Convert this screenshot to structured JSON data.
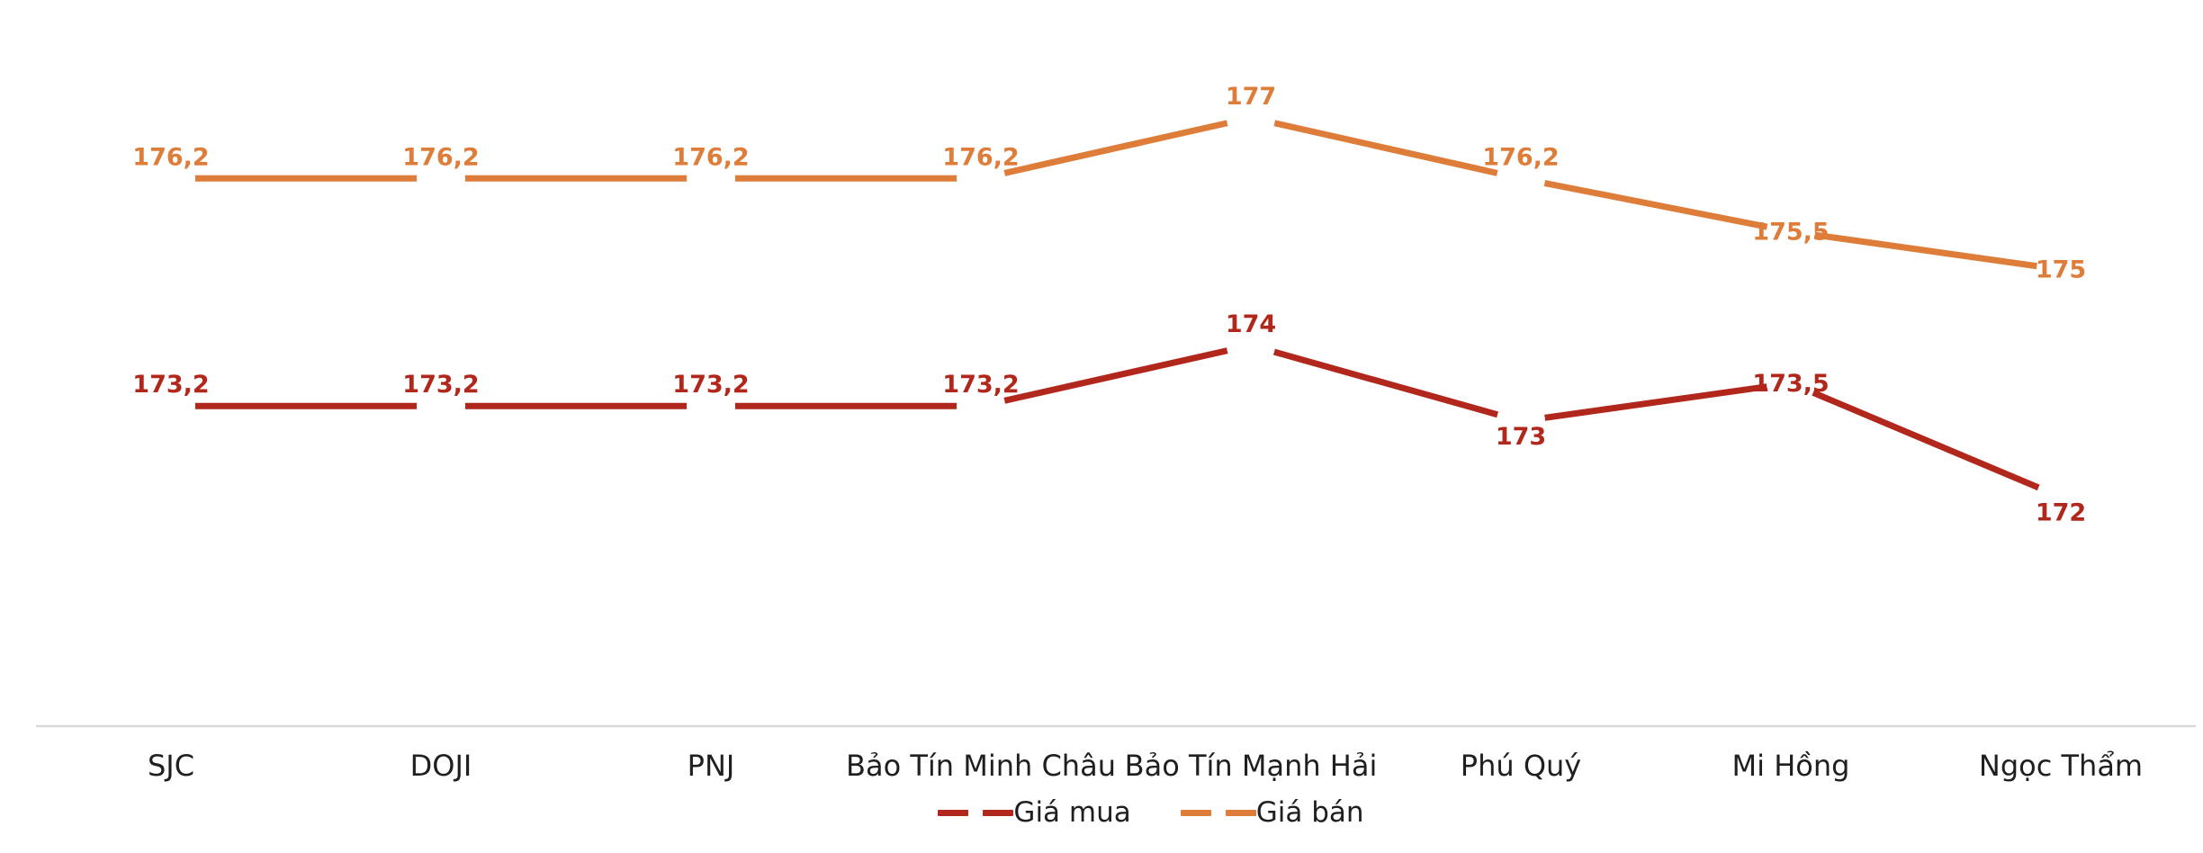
{
  "chart_data": {
    "type": "line",
    "title": "",
    "xlabel": "",
    "ylabel": "",
    "categories": [
      "SJC",
      "DOJI",
      "PNJ",
      "Bảo Tín Minh Châu",
      "Bảo Tín Mạnh Hải",
      "Phú Quý",
      "Mi Hồng",
      "Ngọc Thẩm"
    ],
    "series": [
      {
        "name": "Giá mua",
        "color": "#B2271B",
        "values": [
          173.2,
          173.2,
          173.2,
          173.2,
          174,
          173,
          173.5,
          172
        ],
        "labels": [
          "173,2",
          "173,2",
          "173,2",
          "173,2",
          "174",
          "173",
          "173,5",
          "172"
        ],
        "label_pos": [
          "above",
          "above",
          "above",
          "above",
          "above",
          "below",
          "on",
          "below"
        ]
      },
      {
        "name": "Giá bán",
        "color": "#DE7D3A",
        "values": [
          176.2,
          176.2,
          176.2,
          176.2,
          177,
          176.2,
          175.5,
          175
        ],
        "labels": [
          "176,2",
          "176,2",
          "176,2",
          "176,2",
          "177",
          "176,2",
          "175,5",
          "175"
        ],
        "label_pos": [
          "above",
          "above",
          "above",
          "above",
          "above",
          "above",
          "on",
          "on"
        ]
      }
    ],
    "ylim": [
      172,
      177
    ],
    "grid": false,
    "y_axis_visible": false,
    "legend_position": "bottom",
    "decimal_separator": ",",
    "colors": {
      "axis_line": "#D9D9D9",
      "category_label": "#1F1F1F",
      "background": "#FFFFFF"
    }
  }
}
